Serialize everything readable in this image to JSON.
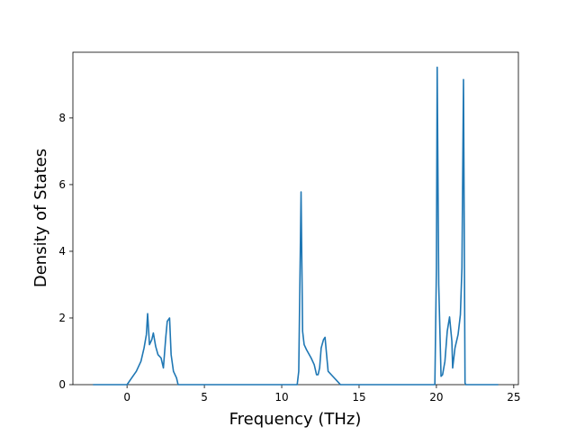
{
  "chart_data": {
    "type": "line",
    "x_label": "Frequency (THz)",
    "y_label": "Density of States",
    "xlim": [
      -3.5,
      25.3
    ],
    "ylim": [
      0,
      9.97
    ],
    "xticks": [
      0,
      5,
      10,
      15,
      20,
      25
    ],
    "yticks": [
      0,
      2,
      4,
      6,
      8
    ],
    "grid": false,
    "series": [
      {
        "color": "#1f77b4",
        "x": [
          -2.2,
          0,
          0.3,
          0.6,
          0.9,
          1.1,
          1.25,
          1.33,
          1.45,
          1.6,
          1.7,
          1.85,
          2.0,
          2.2,
          2.35,
          2.5,
          2.6,
          2.75,
          2.85,
          3.0,
          3.2,
          3.3,
          11.0,
          11.1,
          11.25,
          11.35,
          11.45,
          11.6,
          11.9,
          12.1,
          12.25,
          12.35,
          12.45,
          12.55,
          12.7,
          12.8,
          12.9,
          13.0,
          13.3,
          13.6,
          13.8,
          19.9,
          20.0,
          20.05,
          20.15,
          20.3,
          20.4,
          20.55,
          20.7,
          20.85,
          21.0,
          21.05,
          21.2,
          21.4,
          21.55,
          21.65,
          21.75,
          21.85,
          21.9,
          24.0
        ],
        "values": [
          0,
          0,
          0.2,
          0.4,
          0.7,
          1.1,
          1.5,
          2.13,
          1.2,
          1.35,
          1.55,
          1.15,
          0.9,
          0.8,
          0.5,
          1.4,
          1.9,
          2.0,
          0.9,
          0.4,
          0.2,
          0,
          0,
          0.4,
          5.78,
          1.6,
          1.2,
          1.05,
          0.8,
          0.6,
          0.3,
          0.3,
          0.5,
          1.1,
          1.35,
          1.42,
          0.9,
          0.4,
          0.25,
          0.1,
          0,
          0,
          3.5,
          9.52,
          3.0,
          0.25,
          0.3,
          0.7,
          1.6,
          2.03,
          1.3,
          0.5,
          1.1,
          1.5,
          2.1,
          3.5,
          9.15,
          0.05,
          0,
          0
        ]
      }
    ]
  }
}
